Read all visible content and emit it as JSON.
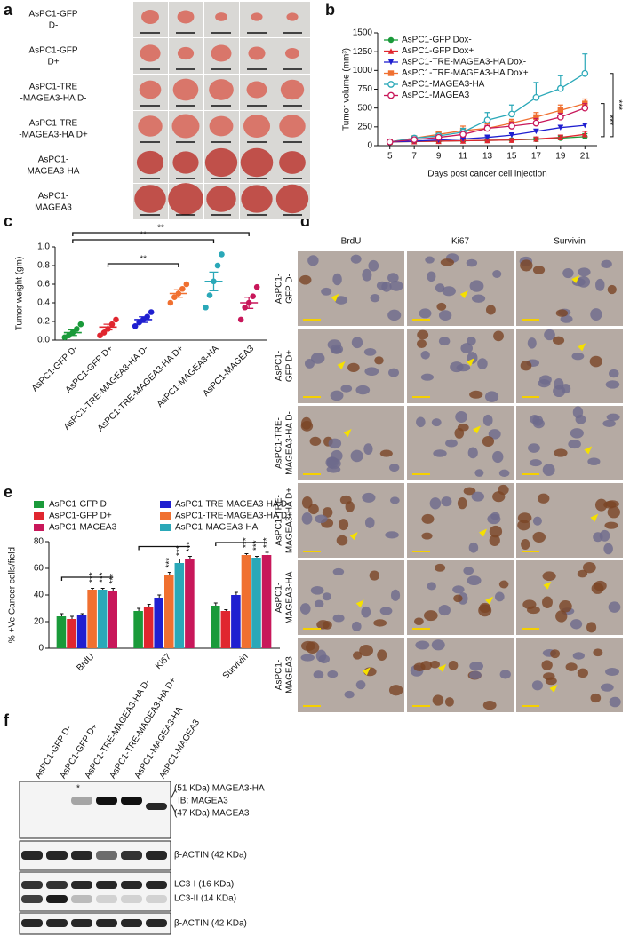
{
  "panel_labels": [
    "a",
    "b",
    "c",
    "d",
    "e",
    "f"
  ],
  "panel_a": {
    "row_labels": [
      [
        "AsPC1-GFP",
        "D-"
      ],
      [
        "AsPC1-GFP",
        "D+"
      ],
      [
        "AsPC1-TRE",
        "-MAGEA3-HA D-"
      ],
      [
        "AsPC1-TRE",
        "-MAGEA3-HA D+"
      ],
      [
        "AsPC1-",
        "MAGEA3-HA"
      ],
      [
        "AsPC1-",
        "MAGEA3"
      ]
    ]
  },
  "panel_d": {
    "column_labels": [
      "BrdU",
      "Ki67",
      "Survivin"
    ],
    "row_labels": [
      [
        "AsPC1-",
        "GFP D-"
      ],
      [
        "AsPC1-",
        "GFP D+"
      ],
      [
        "AsPC1-TRE-",
        "MAGEA3-HA D-"
      ],
      [
        "AsPC1-TRE-",
        "MAGEA3-HA D+"
      ],
      [
        "AsPC1-",
        "MAGEA3-HA"
      ],
      [
        "AsPC1-",
        "MAGEA3"
      ]
    ]
  },
  "panel_f": {
    "lane_labels": [
      "AsPC1-GFP D-",
      "AsPC1-GFP D+",
      "AsPC1-TRE-MAGEA3-HA D-",
      "AsPC1-TRE-MAGEA3-HA D+",
      "AsPC1-MAGEA3-HA",
      "AsPC1-MAGEA3"
    ],
    "band_labels": [
      "(51 KDa) MAGEA3-HA",
      "IB: MAGEA3",
      "(47 KDa) MAGEA3",
      "β-ACTIN (42 KDa)",
      "LC3-I (16 KDa)",
      "LC3-II (14 KDa)",
      "β-ACTIN (42 KDa)"
    ],
    "asterisk": "*"
  },
  "chart_data": [
    {
      "type": "line",
      "x_label": "Days post cancer cell injection",
      "y_label": "Tumor volume (mm³)",
      "x": [
        5,
        7,
        9,
        11,
        13,
        15,
        17,
        19,
        21
      ],
      "xlim": [
        4,
        22
      ],
      "xticks": [
        5,
        7,
        9,
        11,
        13,
        15,
        17,
        19,
        21
      ],
      "ylim": [
        0,
        1500
      ],
      "yticks": [
        0,
        250,
        500,
        750,
        1000,
        1250,
        1500
      ],
      "significance": "***",
      "series": [
        {
          "name": "AsPC1-GFP Dox-",
          "color": "#1a9a3a",
          "marker": "circle",
          "values": [
            50,
            55,
            60,
            65,
            70,
            75,
            85,
            100,
            120
          ],
          "errors": [
            5,
            8,
            10,
            15,
            15,
            15,
            20,
            30,
            40
          ]
        },
        {
          "name": "AsPC1-GFP Dox+",
          "color": "#e0262f",
          "marker": "triangle",
          "values": [
            50,
            55,
            60,
            65,
            70,
            75,
            90,
            110,
            150
          ],
          "errors": [
            5,
            8,
            10,
            15,
            15,
            20,
            25,
            30,
            40
          ]
        },
        {
          "name": "AsPC1-TRE-MAGEA3-HA Dox-",
          "color": "#1f1fd0",
          "marker": "triangle-down",
          "values": [
            50,
            60,
            75,
            90,
            110,
            140,
            190,
            240,
            270
          ],
          "errors": [
            5,
            10,
            15,
            15,
            20,
            20,
            25,
            30,
            30
          ]
        },
        {
          "name": "AsPC1-TRE-MAGEA3-HA Dox+",
          "color": "#f07030",
          "marker": "square",
          "values": [
            50,
            100,
            150,
            200,
            230,
            300,
            380,
            470,
            560
          ],
          "errors": [
            5,
            20,
            40,
            60,
            60,
            50,
            60,
            70,
            60
          ]
        },
        {
          "name": "AsPC1-MAGEA3-HA",
          "color": "#2aa8b8",
          "marker": "open-circle",
          "values": [
            50,
            100,
            130,
            180,
            340,
            420,
            640,
            760,
            960
          ],
          "errors": [
            5,
            20,
            30,
            50,
            100,
            120,
            200,
            170,
            260
          ]
        },
        {
          "name": "AsPC1-MAGEA3",
          "color": "#c8175a",
          "marker": "open-circle",
          "values": [
            50,
            80,
            110,
            150,
            230,
            260,
            300,
            380,
            500
          ],
          "errors": [
            5,
            15,
            20,
            25,
            40,
            50,
            60,
            50,
            60
          ]
        }
      ]
    },
    {
      "type": "dot",
      "y_label": "Tumor weight (gm)",
      "categories": [
        "AsPC1-GFP D-",
        "AsPC1-GFP D+",
        "AsPC1-TRE-MAGEA3-HA D-",
        "AsPC1-TRE-MAGEA3-HA D+",
        "AsPC1-MAGEA3-HA",
        "AsPC1-MAGEA3"
      ],
      "ylim": [
        0,
        1
      ],
      "yticks": [
        {
          "value": 0,
          "label": "0.0"
        },
        {
          "value": 0.2,
          "label": "0.2"
        },
        {
          "value": 0.4,
          "label": "0.4"
        },
        {
          "value": 0.6,
          "label": "0.6"
        },
        {
          "value": 0.8,
          "label": "0.8"
        },
        {
          "value": 1,
          "label": "1.0"
        }
      ],
      "significance": "**",
      "groups": [
        {
          "color": "#1a9a3a",
          "values": [
            0.03,
            0.05,
            0.08,
            0.12,
            0.17
          ],
          "mean": 0.08,
          "sem": 0.03
        },
        {
          "color": "#e0262f",
          "values": [
            0.05,
            0.08,
            0.12,
            0.17,
            0.22
          ],
          "mean": 0.14,
          "sem": 0.03
        },
        {
          "color": "#1f1fd0",
          "values": [
            0.15,
            0.19,
            0.22,
            0.25,
            0.3
          ],
          "mean": 0.22,
          "sem": 0.03
        },
        {
          "color": "#f07030",
          "values": [
            0.4,
            0.46,
            0.5,
            0.55,
            0.6
          ],
          "mean": 0.5,
          "sem": 0.04
        },
        {
          "color": "#2aa8b8",
          "values": [
            0.35,
            0.48,
            0.63,
            0.8,
            0.92
          ],
          "mean": 0.63,
          "sem": 0.1
        },
        {
          "color": "#c8175a",
          "values": [
            0.22,
            0.35,
            0.4,
            0.47,
            0.57
          ],
          "mean": 0.4,
          "sem": 0.06
        }
      ]
    },
    {
      "type": "bar",
      "y_label": "% +Ve Cancer cells/field",
      "categories": [
        "BrdU",
        "Ki67",
        "Survivin"
      ],
      "ylim": [
        0,
        80
      ],
      "yticks": [
        0,
        20,
        40,
        60,
        80
      ],
      "significance": "***",
      "series": [
        {
          "name": "AsPC1-GFP D-",
          "color": "#1a9a3a",
          "values": [
            24,
            28,
            32
          ],
          "errors": [
            2,
            2,
            2
          ]
        },
        {
          "name": "AsPC1-GFP D+",
          "color": "#e0262f",
          "values": [
            22,
            31,
            28
          ],
          "errors": [
            2,
            2,
            1
          ]
        },
        {
          "name": "AsPC1-TRE-MAGEA3-HA D-",
          "color": "#1f1fd0",
          "values": [
            25,
            38,
            40
          ],
          "errors": [
            1,
            2,
            2
          ]
        },
        {
          "name": "AsPC1-TRE-MAGEA3-HA D+",
          "color": "#f07030",
          "values": [
            44,
            55,
            70
          ],
          "errors": [
            1,
            2,
            1
          ]
        },
        {
          "name": "AsPC1-MAGEA3-HA",
          "color": "#2aa8b8",
          "values": [
            44,
            64,
            68
          ],
          "errors": [
            1,
            3,
            1
          ]
        },
        {
          "name": "AsPC1-MAGEA3",
          "color": "#c8175a",
          "values": [
            43,
            67,
            70
          ],
          "errors": [
            2,
            2,
            2
          ]
        }
      ]
    }
  ]
}
